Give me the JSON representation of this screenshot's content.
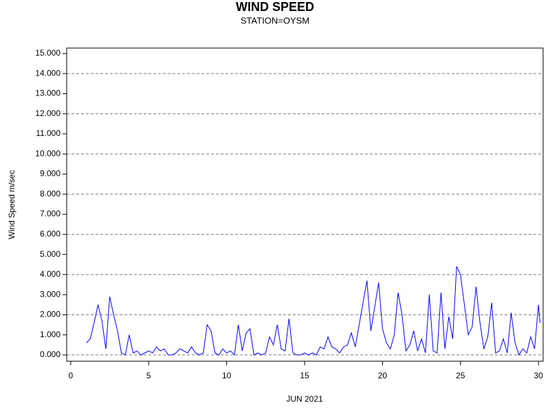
{
  "chart_data": {
    "type": "line",
    "title": "WIND SPEED",
    "subtitle": "STATION=OYSM",
    "x_label": "JUN 2021",
    "y_label": "Wind Speed m/sec",
    "xlim": [
      -0.26,
      30.3
    ],
    "xticks": [
      0,
      5,
      10,
      15,
      20,
      25,
      30
    ],
    "ylim": [
      -0.31,
      15.27
    ],
    "yticks": [
      {
        "value": 0,
        "label": "0.000"
      },
      {
        "value": 1,
        "label": "1.000"
      },
      {
        "value": 2,
        "label": "2.000"
      },
      {
        "value": 3,
        "label": "3.000"
      },
      {
        "value": 4,
        "label": "4.000"
      },
      {
        "value": 5,
        "label": "5.000"
      },
      {
        "value": 6,
        "label": "6.000"
      },
      {
        "value": 7,
        "label": "7.000"
      },
      {
        "value": 8,
        "label": "8.000"
      },
      {
        "value": 9,
        "label": "9.000"
      },
      {
        "value": 10,
        "label": "10.000"
      },
      {
        "value": 11,
        "label": "11.000"
      },
      {
        "value": 12,
        "label": "12.000"
      },
      {
        "value": 13,
        "label": "13.000"
      },
      {
        "value": 14,
        "label": "14.000"
      },
      {
        "value": 15,
        "label": "15.000"
      }
    ],
    "grid": true,
    "color": "#0000ff",
    "x": [
      1.0,
      1.25,
      1.5,
      1.75,
      2.0,
      2.25,
      2.5,
      2.75,
      3.0,
      3.25,
      3.5,
      3.75,
      4.0,
      4.25,
      4.5,
      4.75,
      5.0,
      5.25,
      5.5,
      5.75,
      6.0,
      6.25,
      6.5,
      6.75,
      7.0,
      7.25,
      7.5,
      7.75,
      8.0,
      8.25,
      8.5,
      8.75,
      9.0,
      9.25,
      9.5,
      9.75,
      10.0,
      10.25,
      10.5,
      10.75,
      11.0,
      11.25,
      11.5,
      11.75,
      12.0,
      12.25,
      12.5,
      12.75,
      13.0,
      13.25,
      13.5,
      13.75,
      14.0,
      14.25,
      14.5,
      14.75,
      15.0,
      15.25,
      15.5,
      15.75,
      16.0,
      16.25,
      16.5,
      16.75,
      17.0,
      17.25,
      17.5,
      17.75,
      18.0,
      18.25,
      18.5,
      18.75,
      19.0,
      19.25,
      19.5,
      19.75,
      20.0,
      20.25,
      20.5,
      20.75,
      21.0,
      21.25,
      21.5,
      21.75,
      22.0,
      22.25,
      22.5,
      22.75,
      23.0,
      23.25,
      23.5,
      23.75,
      24.0,
      24.25,
      24.5,
      24.75,
      25.0,
      25.25,
      25.5,
      25.75,
      26.0,
      26.25,
      26.5,
      26.75,
      27.0,
      27.25,
      27.5,
      27.75,
      28.0,
      28.25,
      28.5,
      28.75,
      29.0,
      29.25,
      29.5,
      29.75,
      30.0,
      30.1
    ],
    "values": [
      0.6,
      0.8,
      1.6,
      2.5,
      1.7,
      0.3,
      2.9,
      2.0,
      1.2,
      0.1,
      0.0,
      1.0,
      0.1,
      0.2,
      0.0,
      0.1,
      0.2,
      0.1,
      0.4,
      0.2,
      0.3,
      0.0,
      0.0,
      0.1,
      0.3,
      0.2,
      0.1,
      0.4,
      0.1,
      0.0,
      0.1,
      1.5,
      1.2,
      0.1,
      0.0,
      0.3,
      0.1,
      0.2,
      0.0,
      1.5,
      0.2,
      1.1,
      1.3,
      0.0,
      0.1,
      0.0,
      0.1,
      0.9,
      0.5,
      1.5,
      0.3,
      0.2,
      1.8,
      0.1,
      0.0,
      0.0,
      0.1,
      0.0,
      0.1,
      0.0,
      0.4,
      0.3,
      0.9,
      0.4,
      0.3,
      0.1,
      0.4,
      0.5,
      1.1,
      0.4,
      1.5,
      2.6,
      3.7,
      1.2,
      2.4,
      3.6,
      1.3,
      0.6,
      0.3,
      1.0,
      3.1,
      2.0,
      0.2,
      0.5,
      1.2,
      0.2,
      0.8,
      0.1,
      3.0,
      0.2,
      0.1,
      3.1,
      0.3,
      1.9,
      0.8,
      4.4,
      4.0,
      2.5,
      1.0,
      1.4,
      3.4,
      1.6,
      0.3,
      0.9,
      2.6,
      0.1,
      0.2,
      0.8,
      0.1,
      2.1,
      0.6,
      0.0,
      0.3,
      0.1,
      0.9,
      0.3,
      2.5,
      1.6
    ]
  }
}
